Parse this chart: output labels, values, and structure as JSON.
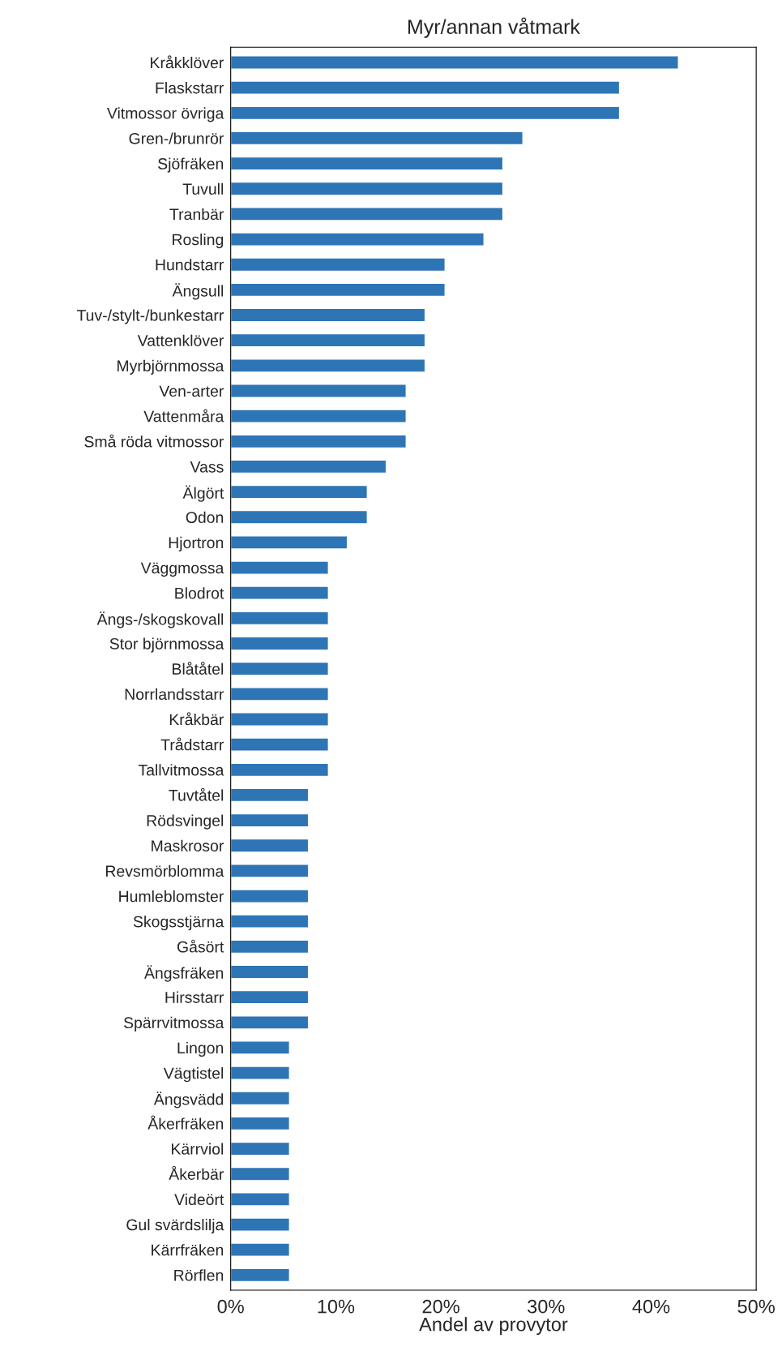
{
  "chart_data": {
    "type": "bar",
    "orientation": "horizontal",
    "title": "Myr/annan våtmark",
    "xlabel": "Andel av provytor",
    "categories": [
      "Kråkklöver",
      "Flaskstarr",
      "Vitmossor övriga",
      "Gren-/brunrör",
      "Sjöfräken",
      "Tuvull",
      "Tranbär",
      "Rosling",
      "Hundstarr",
      "Ängsull",
      "Tuv-/stylt-/bunkestarr",
      "Vattenklöver",
      "Myrbjörnmossa",
      "Ven-arter",
      "Vattenmåra",
      "Små röda vitmossor",
      "Vass",
      "Älgört",
      "Odon",
      "Hjortron",
      "Väggmossa",
      "Blodrot",
      "Ängs-/skogskovall",
      "Stor björnmossa",
      "Blåtåtel",
      "Norrlandsstarr",
      "Kråkbär",
      "Trådstarr",
      "Tallvitmossa",
      "Tuvtåtel",
      "Rödsvingel",
      "Maskrosor",
      "Revsmörblomma",
      "Humleblomster",
      "Skogsstjärna",
      "Gåsört",
      "Ängsfräken",
      "Hirsstarr",
      "Spärrvitmossa",
      "Lingon",
      "Vägtistel",
      "Ängsvädd",
      "Åkerfräken",
      "Kärrviol",
      "Åkerbär",
      "Videört",
      "Gul svärdslilja",
      "Kärrfräken",
      "Rörflen"
    ],
    "values": [
      42.6,
      37.0,
      37.0,
      27.8,
      25.9,
      25.9,
      25.9,
      24.1,
      20.4,
      20.4,
      18.5,
      18.5,
      18.5,
      16.7,
      16.7,
      16.7,
      14.8,
      13.0,
      13.0,
      11.1,
      9.3,
      9.3,
      9.3,
      9.3,
      9.3,
      9.3,
      9.3,
      9.3,
      9.3,
      7.4,
      7.4,
      7.4,
      7.4,
      7.4,
      7.4,
      7.4,
      7.4,
      7.4,
      7.4,
      5.6,
      5.6,
      5.6,
      5.6,
      5.6,
      5.6,
      5.6,
      5.6,
      5.6,
      5.6
    ],
    "color": "#2e75b6",
    "xlim": [
      0,
      50
    ],
    "xticks": [
      {
        "value": 0,
        "label": "0%"
      },
      {
        "value": 10,
        "label": "10%"
      },
      {
        "value": 20,
        "label": "20%"
      },
      {
        "value": 30,
        "label": "30%"
      },
      {
        "value": 40,
        "label": "40%"
      },
      {
        "value": 50,
        "label": "50%"
      }
    ],
    "grid": false,
    "legend": false
  }
}
